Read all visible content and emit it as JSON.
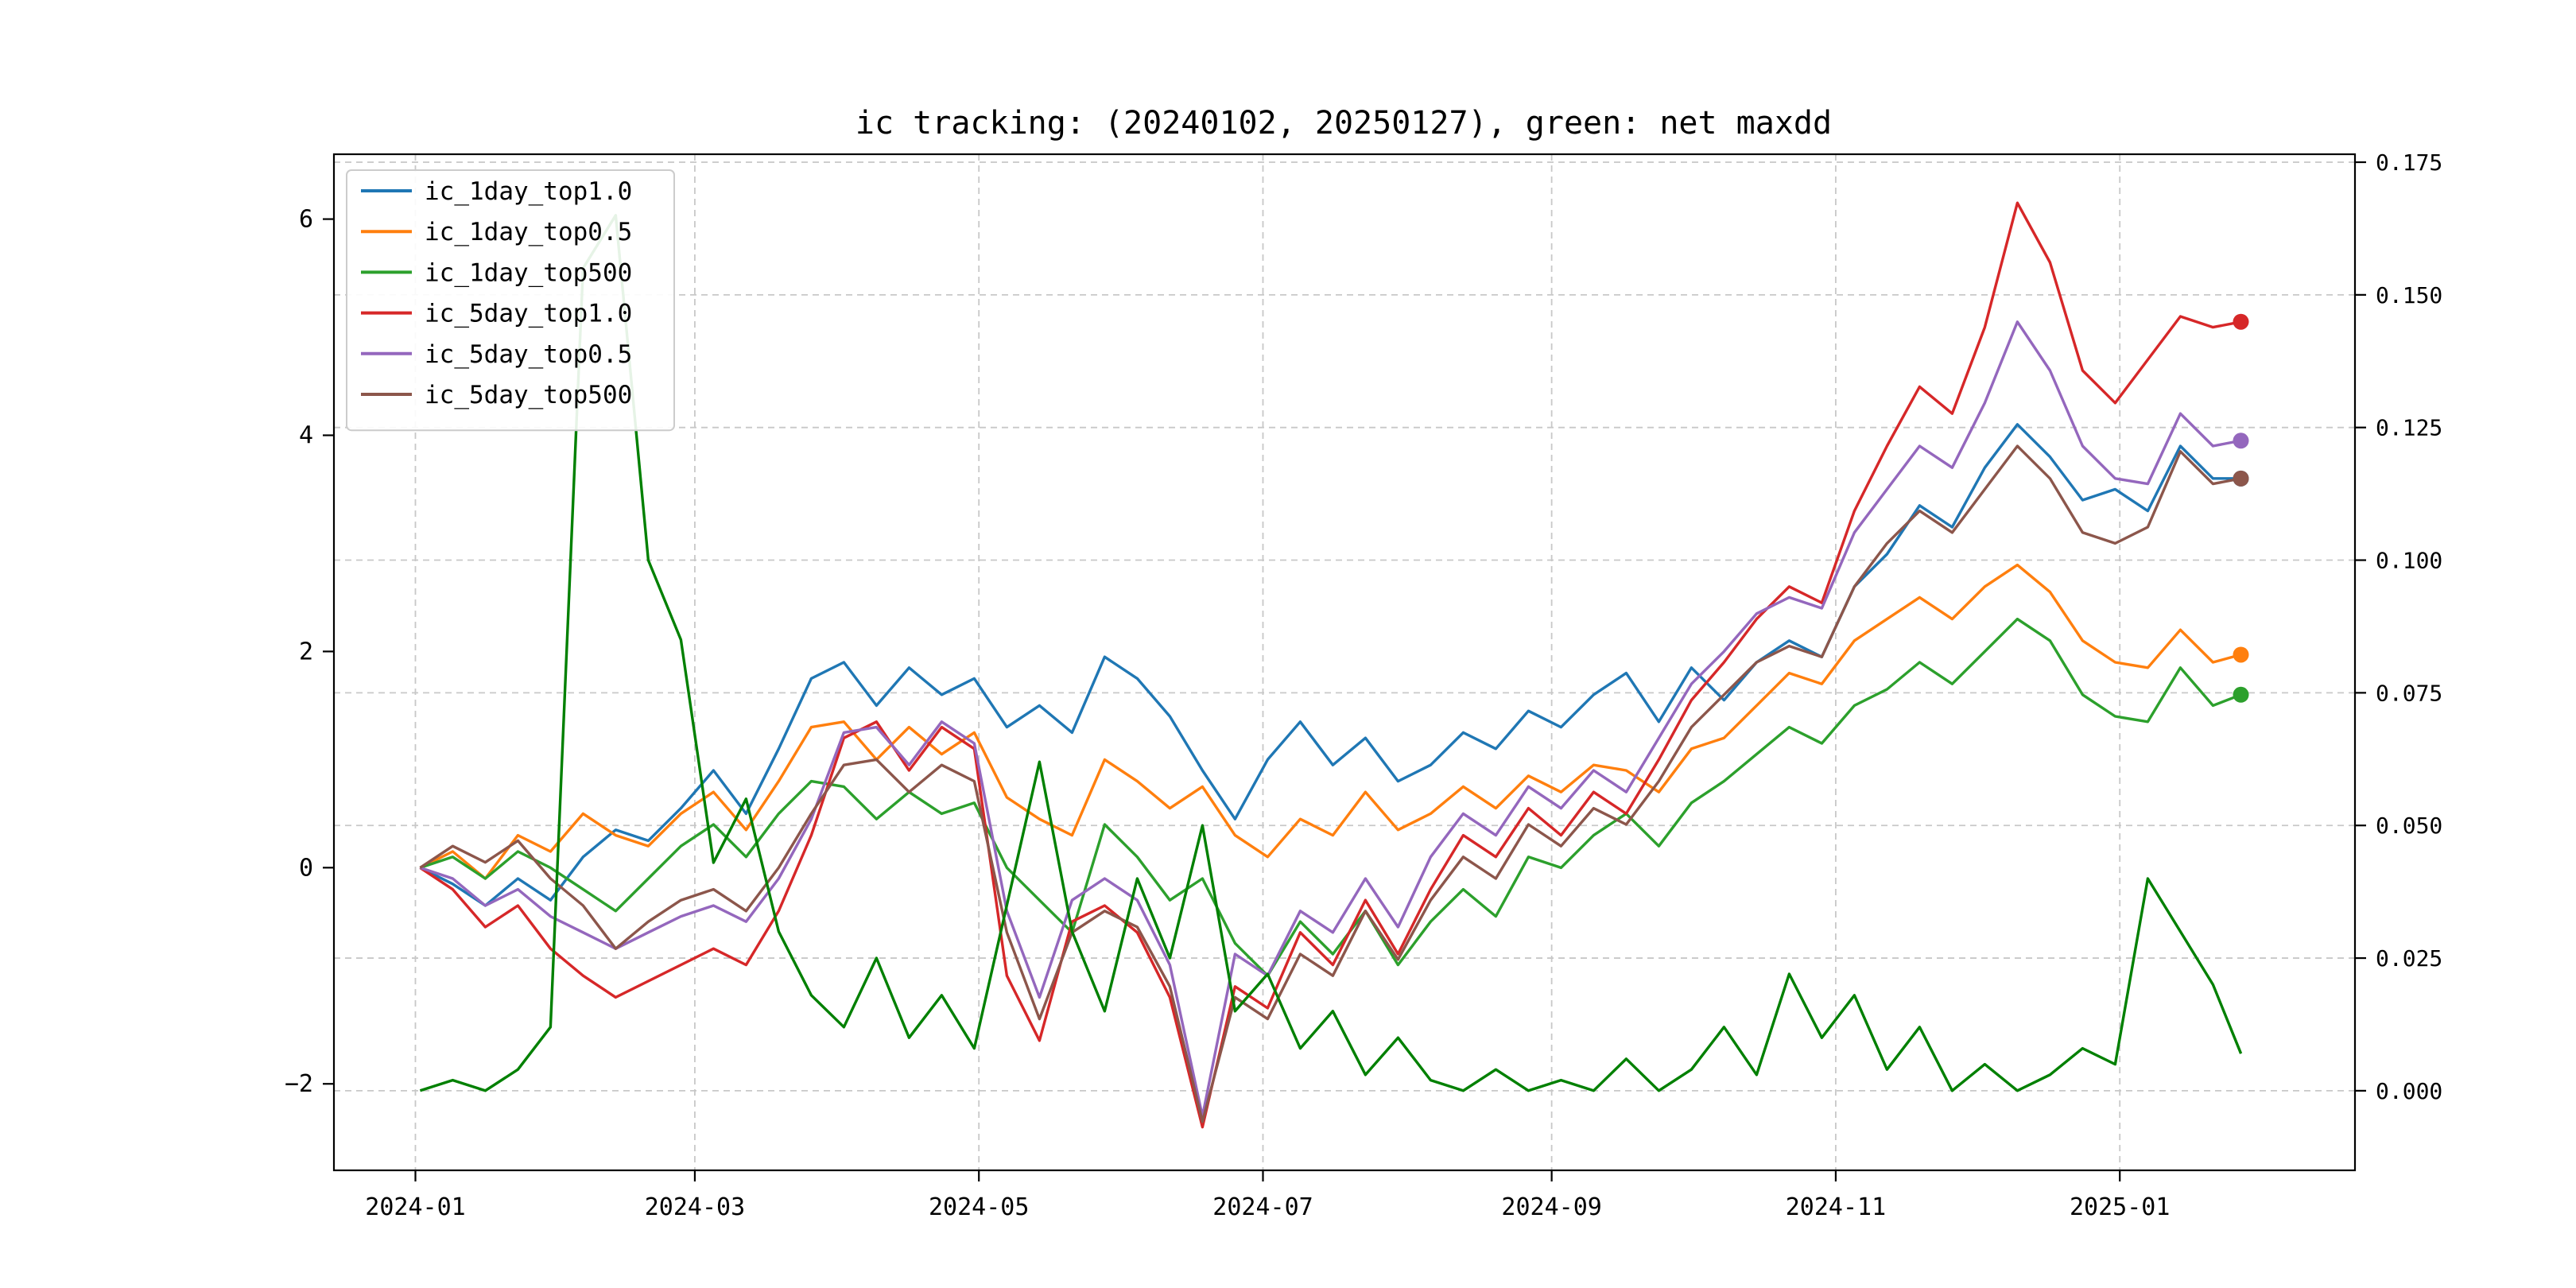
{
  "title": "ic tracking: (20240102, 20250127), green: net maxdd",
  "chart_data": {
    "type": "line",
    "title": "ic tracking: (20240102, 20250127), green: net maxdd",
    "grid": "dashed",
    "legend_position": "upper-left",
    "x_unit": "days since 2024-01-02 (weekly samples, last point 2025-01-27)",
    "x_domain_days": [
      -18.5,
      415.5
    ],
    "left_ylim": [
      -2.8,
      6.6
    ],
    "right_ylim": [
      -0.015,
      0.1765
    ],
    "x_ticks": [
      {
        "day": -1,
        "label": "2024-01"
      },
      {
        "day": 59,
        "label": "2024-03"
      },
      {
        "day": 120,
        "label": "2024-05"
      },
      {
        "day": 181,
        "label": "2024-07"
      },
      {
        "day": 243,
        "label": "2024-09"
      },
      {
        "day": 304,
        "label": "2024-11"
      },
      {
        "day": 365,
        "label": "2025-01"
      }
    ],
    "left_yticks": [
      {
        "value": 6,
        "label": "6"
      },
      {
        "value": 4,
        "label": "4"
      },
      {
        "value": 2,
        "label": "2"
      },
      {
        "value": 0,
        "label": "0"
      },
      {
        "value": -2,
        "label": "−2"
      }
    ],
    "right_yticks": [
      {
        "value": 0.175,
        "label": "0.175"
      },
      {
        "value": 0.15,
        "label": "0.150"
      },
      {
        "value": 0.125,
        "label": "0.125"
      },
      {
        "value": 0.1,
        "label": "0.100"
      },
      {
        "value": 0.075,
        "label": "0.075"
      },
      {
        "value": 0.05,
        "label": "0.050"
      },
      {
        "value": 0.025,
        "label": "0.025"
      },
      {
        "value": 0.0,
        "label": "0.000"
      }
    ],
    "x_days": [
      0,
      7,
      14,
      21,
      28,
      35,
      42,
      49,
      56,
      63,
      70,
      77,
      84,
      91,
      98,
      105,
      112,
      119,
      126,
      133,
      140,
      147,
      154,
      161,
      168,
      175,
      182,
      189,
      196,
      203,
      210,
      217,
      224,
      231,
      238,
      245,
      252,
      259,
      266,
      273,
      280,
      287,
      294,
      301,
      308,
      315,
      322,
      329,
      336,
      343,
      350,
      357,
      364,
      371,
      378,
      385,
      391
    ],
    "series": [
      {
        "name": "ic_1day_top1.0",
        "color": "#1f77b4",
        "axis": "left",
        "in_legend": true,
        "end_dot": true,
        "values": [
          0.0,
          -0.15,
          -0.35,
          -0.1,
          -0.3,
          0.1,
          0.35,
          0.25,
          0.55,
          0.9,
          0.5,
          1.1,
          1.75,
          1.9,
          1.5,
          1.85,
          1.6,
          1.75,
          1.3,
          1.5,
          1.25,
          1.95,
          1.75,
          1.4,
          0.9,
          0.45,
          1.0,
          1.35,
          0.95,
          1.2,
          0.8,
          0.95,
          1.25,
          1.1,
          1.45,
          1.3,
          1.6,
          1.8,
          1.35,
          1.85,
          1.55,
          1.9,
          2.1,
          1.95,
          2.6,
          2.9,
          3.35,
          3.15,
          3.7,
          4.1,
          3.8,
          3.4,
          3.5,
          3.3,
          3.9,
          3.6,
          3.6
        ]
      },
      {
        "name": "ic_1day_top0.5",
        "color": "#ff7f0e",
        "axis": "left",
        "in_legend": true,
        "end_dot": true,
        "values": [
          0.0,
          0.15,
          -0.1,
          0.3,
          0.15,
          0.5,
          0.3,
          0.2,
          0.5,
          0.7,
          0.35,
          0.8,
          1.3,
          1.35,
          1.0,
          1.3,
          1.05,
          1.25,
          0.65,
          0.45,
          0.3,
          1.0,
          0.8,
          0.55,
          0.75,
          0.3,
          0.1,
          0.45,
          0.3,
          0.7,
          0.35,
          0.5,
          0.75,
          0.55,
          0.85,
          0.7,
          0.95,
          0.9,
          0.7,
          1.1,
          1.2,
          1.5,
          1.8,
          1.7,
          2.1,
          2.3,
          2.5,
          2.3,
          2.6,
          2.8,
          2.55,
          2.1,
          1.9,
          1.85,
          2.2,
          1.9,
          1.97
        ]
      },
      {
        "name": "ic_1day_top500",
        "color": "#2ca02c",
        "axis": "left",
        "in_legend": true,
        "end_dot": true,
        "values": [
          0.0,
          0.1,
          -0.1,
          0.15,
          0.0,
          -0.2,
          -0.4,
          -0.1,
          0.2,
          0.4,
          0.1,
          0.5,
          0.8,
          0.75,
          0.45,
          0.7,
          0.5,
          0.6,
          0.0,
          -0.3,
          -0.6,
          0.4,
          0.1,
          -0.3,
          -0.1,
          -0.7,
          -1.0,
          -0.5,
          -0.8,
          -0.4,
          -0.9,
          -0.5,
          -0.2,
          -0.45,
          0.1,
          0.0,
          0.3,
          0.5,
          0.2,
          0.6,
          0.8,
          1.05,
          1.3,
          1.15,
          1.5,
          1.65,
          1.9,
          1.7,
          2.0,
          2.3,
          2.1,
          1.6,
          1.4,
          1.35,
          1.85,
          1.5,
          1.6
        ]
      },
      {
        "name": "ic_5day_top1.0",
        "color": "#d62728",
        "axis": "left",
        "in_legend": true,
        "end_dot": true,
        "values": [
          0.0,
          -0.2,
          -0.55,
          -0.35,
          -0.75,
          -1.0,
          -1.2,
          -1.05,
          -0.9,
          -0.75,
          -0.9,
          -0.4,
          0.3,
          1.2,
          1.35,
          0.9,
          1.3,
          1.1,
          -1.0,
          -1.6,
          -0.5,
          -0.35,
          -0.6,
          -1.2,
          -2.4,
          -1.1,
          -1.3,
          -0.6,
          -0.9,
          -0.3,
          -0.8,
          -0.2,
          0.3,
          0.1,
          0.55,
          0.3,
          0.7,
          0.5,
          1.0,
          1.55,
          1.9,
          2.3,
          2.6,
          2.45,
          3.3,
          3.9,
          4.45,
          4.2,
          5.0,
          6.15,
          5.6,
          4.6,
          4.3,
          4.7,
          5.1,
          5.0,
          5.05
        ]
      },
      {
        "name": "ic_5day_top0.5",
        "color": "#9467bd",
        "axis": "left",
        "in_legend": true,
        "end_dot": true,
        "values": [
          0.0,
          -0.1,
          -0.35,
          -0.2,
          -0.45,
          -0.6,
          -0.75,
          -0.6,
          -0.45,
          -0.35,
          -0.5,
          -0.1,
          0.45,
          1.25,
          1.3,
          0.95,
          1.35,
          1.15,
          -0.4,
          -1.2,
          -0.3,
          -0.1,
          -0.3,
          -0.9,
          -2.3,
          -0.8,
          -1.0,
          -0.4,
          -0.6,
          -0.1,
          -0.55,
          0.1,
          0.5,
          0.3,
          0.75,
          0.55,
          0.9,
          0.7,
          1.2,
          1.7,
          2.0,
          2.35,
          2.5,
          2.4,
          3.1,
          3.5,
          3.9,
          3.7,
          4.3,
          5.05,
          4.6,
          3.9,
          3.6,
          3.55,
          4.2,
          3.9,
          3.95
        ]
      },
      {
        "name": "ic_5day_top500",
        "color": "#8c564b",
        "axis": "left",
        "in_legend": true,
        "end_dot": true,
        "values": [
          0.0,
          0.2,
          0.05,
          0.25,
          -0.1,
          -0.35,
          -0.75,
          -0.5,
          -0.3,
          -0.2,
          -0.4,
          0.0,
          0.5,
          0.95,
          1.0,
          0.7,
          0.95,
          0.8,
          -0.6,
          -1.4,
          -0.6,
          -0.4,
          -0.55,
          -1.1,
          -2.35,
          -1.2,
          -1.4,
          -0.8,
          -1.0,
          -0.4,
          -0.85,
          -0.3,
          0.1,
          -0.1,
          0.4,
          0.2,
          0.55,
          0.4,
          0.8,
          1.3,
          1.6,
          1.9,
          2.05,
          1.95,
          2.6,
          3.0,
          3.3,
          3.1,
          3.5,
          3.9,
          3.6,
          3.1,
          3.0,
          3.15,
          3.85,
          3.55,
          3.6
        ]
      },
      {
        "name": "net_maxdd",
        "color": "#008000",
        "axis": "right",
        "in_legend": false,
        "end_dot": false,
        "values": [
          0.0,
          0.002,
          0.0,
          0.004,
          0.012,
          0.155,
          0.165,
          0.1,
          0.085,
          0.043,
          0.055,
          0.03,
          0.018,
          0.012,
          0.025,
          0.01,
          0.018,
          0.008,
          0.035,
          0.062,
          0.03,
          0.015,
          0.04,
          0.025,
          0.05,
          0.015,
          0.022,
          0.008,
          0.015,
          0.003,
          0.01,
          0.002,
          0.0,
          0.004,
          0.0,
          0.002,
          0.0,
          0.006,
          0.0,
          0.004,
          0.012,
          0.003,
          0.022,
          0.01,
          0.018,
          0.004,
          0.012,
          0.0,
          0.005,
          0.0,
          0.003,
          0.008,
          0.005,
          0.04,
          0.03,
          0.02,
          0.007
        ]
      }
    ],
    "legend": [
      "ic_1day_top1.0",
      "ic_1day_top0.5",
      "ic_1day_top500",
      "ic_5day_top1.0",
      "ic_5day_top0.5",
      "ic_5day_top500"
    ],
    "style": {
      "grid_color": "#c8c8c8",
      "frame_color": "#000000",
      "background": "#ffffff"
    }
  }
}
